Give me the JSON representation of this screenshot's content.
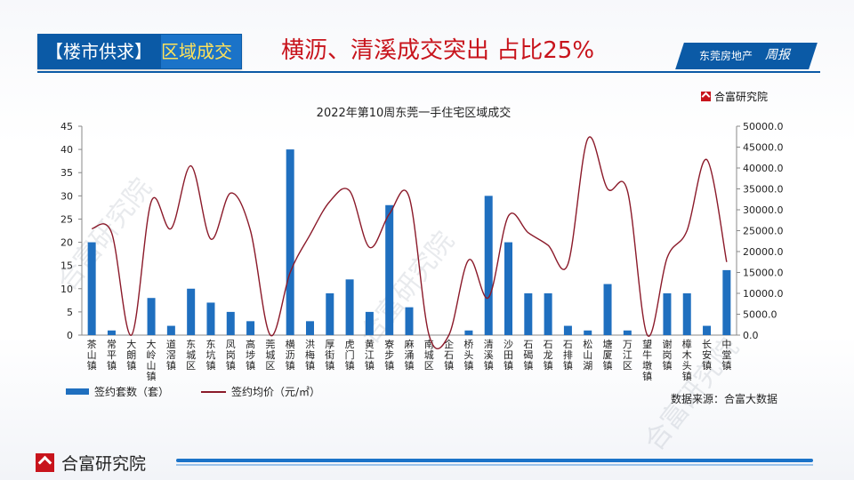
{
  "header": {
    "section_left": "【楼市供求】",
    "section_right": "区域成交",
    "headline": "横沥、清溪成交突出  占比25%",
    "brand": "东莞房地产",
    "brand_script": "周报"
  },
  "logo_top": "合富研究院",
  "source": "数据来源：合富大数据",
  "bottom_logo": "合富研究院",
  "watermark": "合富研究院",
  "colors": {
    "bar": "#1f6fbf",
    "line": "#8b1a2a",
    "brand_blue": "#0b5aa6",
    "headline_red": "#c8141c"
  },
  "chart_data": {
    "type": "bar",
    "title": "2022年第10周东莞一手住宅区域成交",
    "categories": [
      "茶山镇",
      "常平镇",
      "大朗镇",
      "大岭山镇",
      "道滘镇",
      "东城区",
      "东坑镇",
      "凤岗镇",
      "高埗镇",
      "莞城区",
      "横沥镇",
      "洪梅镇",
      "厚街镇",
      "虎门镇",
      "黄江镇",
      "寮步镇",
      "麻涌镇",
      "南城区",
      "企石镇",
      "桥头镇",
      "清溪镇",
      "沙田镇",
      "石碣镇",
      "石龙镇",
      "石排镇",
      "松山湖",
      "塘厦镇",
      "万江区",
      "望牛墩镇",
      "谢岗镇",
      "樟木头镇",
      "长安镇",
      "中堂镇"
    ],
    "series": [
      {
        "name": "签约套数（套）",
        "axis": "left",
        "type": "bar",
        "values": [
          20,
          1,
          0,
          8,
          2,
          10,
          7,
          5,
          3,
          0,
          40,
          3,
          9,
          12,
          5,
          28,
          6,
          0,
          0,
          1,
          30,
          20,
          9,
          9,
          2,
          1,
          11,
          1,
          0,
          9,
          9,
          2,
          14
        ]
      },
      {
        "name": "签约均价（元/㎡）",
        "axis": "right",
        "type": "line",
        "values": [
          25500,
          24500,
          0,
          32000,
          25500,
          40500,
          23000,
          34000,
          25000,
          0,
          15000,
          24000,
          32000,
          34500,
          21000,
          29000,
          33000,
          0,
          0,
          18000,
          9000,
          28500,
          24500,
          21500,
          17000,
          47000,
          35000,
          34500,
          0,
          18500,
          25000,
          42000,
          17500
        ]
      }
    ],
    "left_axis": {
      "ylim": [
        0,
        45
      ],
      "ticks": [
        "0",
        "5",
        "10",
        "15",
        "20",
        "25",
        "30",
        "35",
        "40",
        "45"
      ]
    },
    "right_axis": {
      "ylim": [
        0,
        50000
      ],
      "ticks": [
        "0.0",
        "5000.0",
        "10000.0",
        "15000.0",
        "20000.0",
        "25000.0",
        "30000.0",
        "35000.0",
        "40000.0",
        "45000.0",
        "50000.0"
      ]
    },
    "grid": false,
    "legend": "bottom-left"
  }
}
